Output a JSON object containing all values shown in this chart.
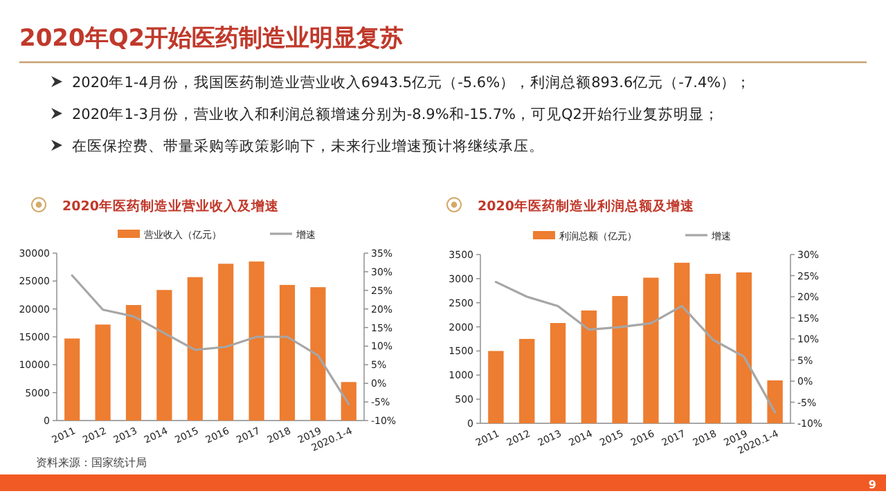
{
  "chart_data": [
    {
      "type": "other",
      "title": "2020年Q2开始医药制造业明显复苏",
      "annotations": [
        "2020年1-4月份，我国医药制造业营业收入6943.5亿元（-5.6%），利润总额893.6亿元（-7.4%）；",
        "2020年1-3月份，营业收入和利润总额增速分别为-8.9%和-15.7%，可见Q2开始行业复苏明显；",
        "在医保控费、带量采购等政策影响下，未来行业增速预计将继续承压。",
        "资料来源：国家统计局",
        "9"
      ]
    },
    {
      "type": "bar",
      "title": "2020年医药制造业营业收入及增速",
      "categories": [
        "2011",
        "2012",
        "2013",
        "2014",
        "2015",
        "2016",
        "2017",
        "2018",
        "2019",
        "2020.1-4"
      ],
      "series": [
        {
          "name": "营业收入（亿元）",
          "type": "bar",
          "color": "#ed7d31",
          "values": [
            14700,
            17200,
            20700,
            23400,
            25700,
            28100,
            28500,
            24300,
            23900,
            6900
          ]
        },
        {
          "name": "增速",
          "type": "line",
          "axis": "y2",
          "color": "#a6a6a6",
          "values": [
            29,
            19.8,
            18,
            13.5,
            9,
            9.8,
            12.5,
            12.5,
            7.5,
            -5.6
          ]
        }
      ],
      "ylim": [
        0,
        30000
      ],
      "yticks": [
        0,
        5000,
        10000,
        15000,
        20000,
        25000,
        30000
      ],
      "y2lim": [
        -10,
        35
      ],
      "y2ticks": [
        {
          "value": -10,
          "label": "-10%"
        },
        {
          "value": -5,
          "label": "-5%"
        },
        {
          "value": 0,
          "label": "0%"
        },
        {
          "value": 5,
          "label": "5%"
        },
        {
          "value": 10,
          "label": "10%"
        },
        {
          "value": 15,
          "label": "15%"
        },
        {
          "value": 20,
          "label": "20%"
        },
        {
          "value": 25,
          "label": "25%"
        },
        {
          "value": 30,
          "label": "30%"
        },
        {
          "value": 35,
          "label": "35%"
        }
      ],
      "legend": "top"
    },
    {
      "type": "bar",
      "title": "2020年医药制造业利润总额及增速",
      "categories": [
        "2011",
        "2012",
        "2013",
        "2014",
        "2015",
        "2016",
        "2017",
        "2018",
        "2019",
        "2020.1-4"
      ],
      "series": [
        {
          "name": "利润总额（亿元）",
          "type": "bar",
          "color": "#ed7d31",
          "values": [
            1500,
            1750,
            2080,
            2340,
            2640,
            3020,
            3330,
            3100,
            3130,
            890
          ]
        },
        {
          "name": "增速",
          "type": "line",
          "axis": "y2",
          "color": "#a6a6a6",
          "values": [
            23.5,
            20,
            17.8,
            12.2,
            12.8,
            13.7,
            17.8,
            9.8,
            5.8,
            -7.4
          ]
        }
      ],
      "ylim": [
        0,
        3500
      ],
      "yticks": [
        0,
        500,
        1000,
        1500,
        2000,
        2500,
        3000,
        3500
      ],
      "y2lim": [
        -10,
        30
      ],
      "y2ticks": [
        {
          "value": -10,
          "label": "-10%"
        },
        {
          "value": -5,
          "label": "-5%"
        },
        {
          "value": 0,
          "label": "0%"
        },
        {
          "value": 5,
          "label": "5%"
        },
        {
          "value": 10,
          "label": "10%"
        },
        {
          "value": 15,
          "label": "15%"
        },
        {
          "value": 20,
          "label": "20%"
        },
        {
          "value": 25,
          "label": "25%"
        },
        {
          "value": 30,
          "label": "30%"
        }
      ],
      "legend": "top"
    }
  ]
}
